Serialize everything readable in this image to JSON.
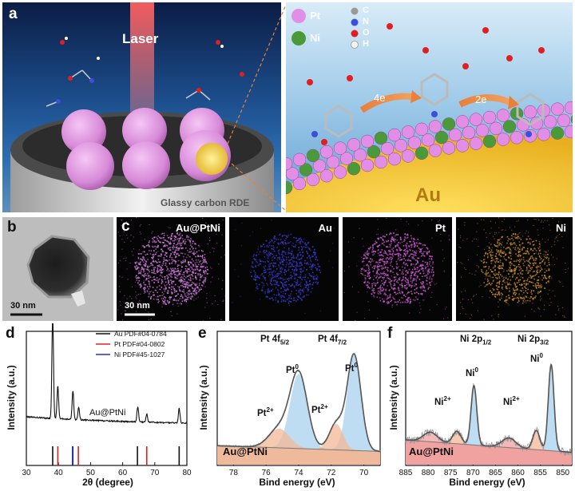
{
  "panel_a": {
    "label": "a",
    "laser_label": "Laser",
    "rde_label": "Glassy carbon RDE",
    "legend": [
      {
        "symbol": "Pt",
        "color": "#e28ee6"
      },
      {
        "symbol": "Ni",
        "color": "#4a9a3a"
      }
    ],
    "atoms": [
      {
        "symbol": "C",
        "color": "#9a9a9a"
      },
      {
        "symbol": "N",
        "color": "#3b4fd8"
      },
      {
        "symbol": "O",
        "color": "#e02020"
      },
      {
        "symbol": "H",
        "color": "#f2f2f2"
      }
    ],
    "step1": "4e",
    "step2": "2e",
    "core_label": "Au"
  },
  "panel_b": {
    "label": "b",
    "scale": "30 nm"
  },
  "panel_c": {
    "label": "c",
    "scale": "30 nm",
    "maps": [
      {
        "title": "Au@PtNi",
        "color": "#d27ae0"
      },
      {
        "title": "Au",
        "color": "#3a3ad8"
      },
      {
        "title": "Pt",
        "color": "#d25ad6"
      },
      {
        "title": "Ni",
        "color": "#d0922a"
      }
    ]
  },
  "panel_d": {
    "label": "d",
    "sample": "Au@PtNi",
    "chart_data": {
      "type": "line",
      "xlabel": "2θ (degree)",
      "ylabel": "Intensity (a.u.)",
      "xlim": [
        30,
        80
      ],
      "xticks": [
        30,
        40,
        50,
        60,
        70,
        80
      ],
      "peaks": [
        {
          "x": 38.2,
          "height": 1.0
        },
        {
          "x": 39.8,
          "height": 0.32
        },
        {
          "x": 44.5,
          "height": 0.28
        },
        {
          "x": 46.3,
          "height": 0.12
        },
        {
          "x": 64.7,
          "height": 0.15
        },
        {
          "x": 67.5,
          "height": 0.08
        },
        {
          "x": 77.6,
          "height": 0.14
        }
      ],
      "references": [
        {
          "name": "Au  PDF#04-0784",
          "color": "#111111",
          "lines": [
            38.2,
            44.4,
            64.6,
            77.6
          ]
        },
        {
          "name": "Pt  PDF#04-0802",
          "color": "#e02020",
          "lines": [
            39.8,
            46.2,
            67.5
          ]
        },
        {
          "name": "Ni  PDF#45-1027",
          "color": "#2030d0",
          "lines": [
            44.5
          ]
        }
      ]
    }
  },
  "panel_e": {
    "label": "e",
    "sample": "Au@PtNi",
    "annotations": {
      "pt_5_2": "Pt 4f",
      "pt_5_2_sub": "5/2",
      "pt_7_2": "Pt 4f",
      "pt_7_2_sub": "7/2",
      "pt0_a": "Pt",
      "pt0_a_sup": "0",
      "pt0_b": "Pt",
      "pt0_b_sup": "0",
      "pt2_a": "Pt",
      "pt2_a_sup": "2+",
      "pt2_b": "Pt",
      "pt2_b_sup": "2+"
    },
    "chart_data": {
      "type": "line",
      "xlabel": "Bind energy (eV)",
      "ylabel": "Intensity (a.u.)",
      "xlim": [
        79,
        69
      ],
      "xticks": [
        78,
        76,
        74,
        72,
        70
      ],
      "components": [
        {
          "name": "Pt0 4f5/2",
          "center": 74.0,
          "height": 0.78,
          "width": 0.75,
          "color": "#a8d0ee"
        },
        {
          "name": "Pt0 4f7/2",
          "center": 70.6,
          "height": 1.0,
          "width": 0.6,
          "color": "#a8d0ee"
        },
        {
          "name": "Pt2+ 4f5/2",
          "center": 75.2,
          "height": 0.2,
          "width": 0.9,
          "color": "#f3b896"
        },
        {
          "name": "Pt2+ 4f7/2",
          "center": 71.7,
          "height": 0.27,
          "width": 0.6,
          "color": "#f3b896"
        }
      ]
    }
  },
  "panel_f": {
    "label": "f",
    "sample": "Au@PtNi",
    "annotations": {
      "ni_1_2": "Ni 2p",
      "ni_1_2_sub": "1/2",
      "ni_3_2": "Ni 2p",
      "ni_3_2_sub": "3/2",
      "ni0_a": "Ni",
      "ni0_a_sup": "0",
      "ni0_b": "Ni",
      "ni0_b_sup": "0",
      "ni2_a": "Ni",
      "ni2_a_sup": "2+",
      "ni2_b": "Ni",
      "ni2_b_sup": "2+"
    },
    "chart_data": {
      "type": "line",
      "xlabel": "Bind energy (eV)",
      "ylabel": "Intensity (a.u.)",
      "xlim": [
        885,
        848
      ],
      "xticks": [
        885,
        880,
        875,
        870,
        865,
        860,
        855,
        850
      ],
      "components": [
        {
          "name": "Ni0 2p1/2",
          "center": 869.8,
          "height": 0.62,
          "width": 0.9,
          "color": "#a8d0ee"
        },
        {
          "name": "Ni0 2p3/2",
          "center": 852.6,
          "height": 0.9,
          "width": 0.9,
          "color": "#a8d0ee"
        },
        {
          "name": "Ni2+ 2p1/2",
          "center": 873.6,
          "height": 0.13,
          "width": 1.3,
          "color": "#f3b896"
        },
        {
          "name": "Ni2+ 2p3/2",
          "center": 855.9,
          "height": 0.2,
          "width": 1.1,
          "color": "#f3b896"
        },
        {
          "name": "sat 1",
          "center": 879.5,
          "height": 0.1,
          "width": 2.2,
          "color": "#f0a0a0"
        },
        {
          "name": "sat 2",
          "center": 862.0,
          "height": 0.1,
          "width": 2.2,
          "color": "#f0a0a0"
        }
      ]
    }
  }
}
